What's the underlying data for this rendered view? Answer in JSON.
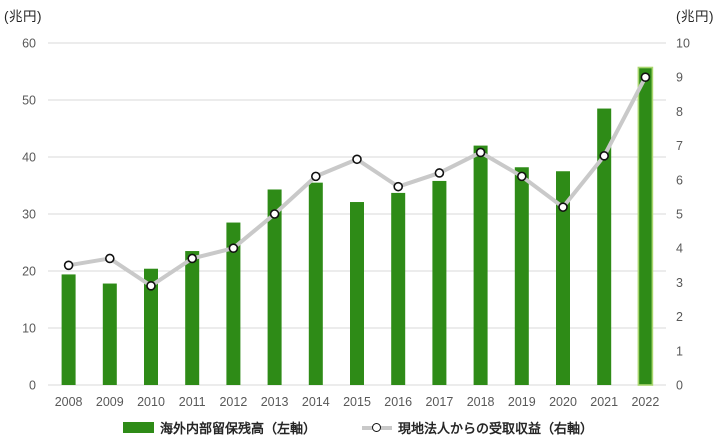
{
  "chart_data": {
    "type": "combo-bar-line",
    "categories": [
      "2008",
      "2009",
      "2010",
      "2011",
      "2012",
      "2013",
      "2014",
      "2015",
      "2016",
      "2017",
      "2018",
      "2019",
      "2020",
      "2021",
      "2022"
    ],
    "series": [
      {
        "name": "海外内部留保残高（左軸）",
        "type": "bar",
        "axis": "left",
        "values": [
          19.4,
          17.8,
          20.4,
          23.5,
          28.5,
          34.3,
          35.5,
          32.1,
          33.7,
          35.8,
          42.0,
          38.2,
          37.5,
          48.5,
          55.7
        ]
      },
      {
        "name": "現地法人からの受取収益（右軸）",
        "type": "line",
        "axis": "right",
        "values": [
          3.5,
          3.7,
          2.9,
          3.7,
          4.0,
          5.0,
          6.1,
          6.6,
          5.8,
          6.2,
          6.8,
          6.1,
          5.2,
          6.7,
          9.0
        ]
      }
    ],
    "left_axis": {
      "title": "(兆円)",
      "min": 0,
      "max": 60,
      "step": 10,
      "tick_values": [
        0,
        10,
        20,
        30,
        40,
        50,
        60
      ],
      "tick_labels": [
        "0",
        "10",
        "20",
        "30",
        "40",
        "50",
        "60"
      ]
    },
    "right_axis": {
      "title": "(兆円)",
      "min": 0,
      "max": 10,
      "step": 1,
      "tick_values": [
        0,
        1,
        2,
        3,
        4,
        5,
        6,
        7,
        8,
        9,
        10
      ],
      "tick_labels": [
        "0",
        "1",
        "2",
        "3",
        "4",
        "5",
        "6",
        "7",
        "8",
        "9",
        "10"
      ]
    },
    "grid": true,
    "legend_position": "bottom"
  },
  "colors": {
    "background": "#ffffff",
    "bar": "#2e8b17",
    "bar_highlight_border": "#a9d66e",
    "line": "#c9c9c9",
    "marker_fill": "#ffffff",
    "marker_stroke": "#111111",
    "gridline": "#d9d9d9",
    "axis_line": "#d9d9d9",
    "tick_text": "#595959",
    "title_text": "#262626",
    "legend_text": "#262626"
  }
}
